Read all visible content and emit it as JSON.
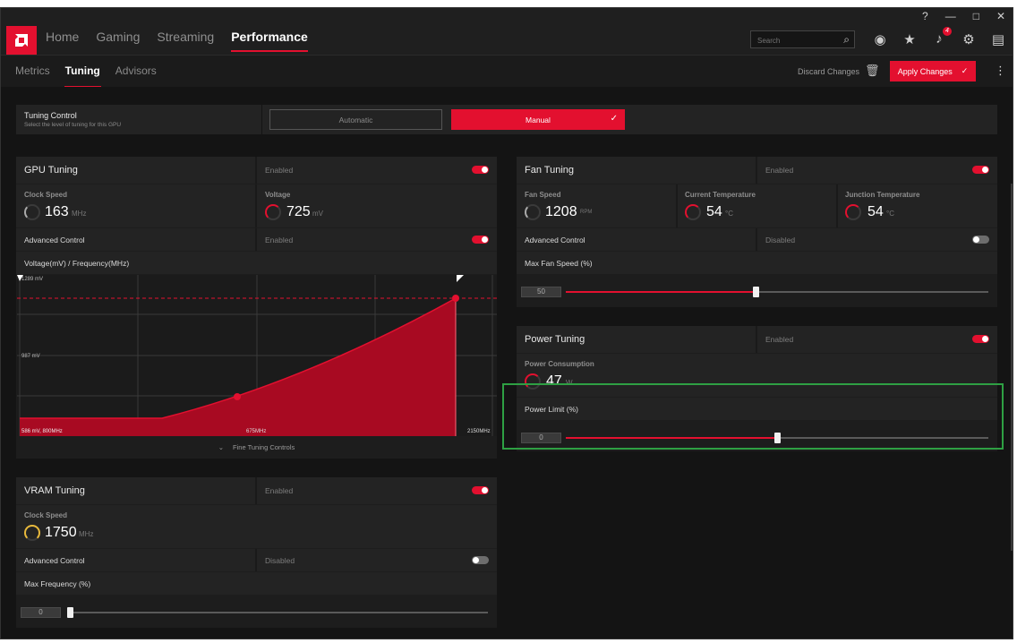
{
  "top_strip": {
    "text": "........................................................................................................................"
  },
  "titlebar": {
    "logo": "a",
    "nav": [
      "Home",
      "Gaming",
      "Streaming",
      "Performance"
    ],
    "active_nav": "Performance",
    "window_controls": [
      "?",
      "—",
      "□",
      "✕"
    ],
    "search": {
      "placeholder": "Search"
    },
    "notification_count": "4"
  },
  "subnav": {
    "tabs": [
      "Metrics",
      "Tuning",
      "Advisors"
    ],
    "active_tab": "Tuning",
    "discard_label": "Discard Changes",
    "apply_label": "Apply Changes"
  },
  "tuning_control": {
    "title": "Tuning Control",
    "subtitle": "Select the level of tuning for this GPU",
    "options": [
      "Automatic",
      "Manual"
    ],
    "selected": "Manual"
  },
  "gpu_tuning": {
    "title": "GPU Tuning",
    "status": "Enabled",
    "clock_speed": {
      "label": "Clock Speed",
      "value": "163",
      "unit": "MHz"
    },
    "voltage": {
      "label": "Voltage",
      "value": "725",
      "unit": "mV"
    },
    "advanced_control": {
      "label": "Advanced Control",
      "status": "Enabled"
    },
    "vf_label": "Voltage(mV) / Frequency(MHz)",
    "chart_labels": {
      "top": "1289 mV",
      "mid": "987 mV",
      "bottom_left": "586 mV, 800MHz",
      "bottom_mid": "675MHz",
      "bottom_right": "2150MHz"
    },
    "fine_tuning": "Fine Tuning Controls"
  },
  "vram_tuning": {
    "title": "VRAM Tuning",
    "status": "Enabled",
    "clock_speed": {
      "label": "Clock Speed",
      "value": "1750",
      "unit": "MHz"
    },
    "advanced_control": {
      "label": "Advanced Control",
      "status": "Disabled"
    },
    "max_freq_label": "Max Frequency (%)",
    "max_freq_value": "0",
    "max_freq_fraction": 0.0
  },
  "fan_tuning": {
    "title": "Fan Tuning",
    "status": "Enabled",
    "fan_speed": {
      "label": "Fan Speed",
      "value": "1208",
      "unit": "RPM"
    },
    "current_temp": {
      "label": "Current Temperature",
      "value": "54",
      "unit": "°C"
    },
    "junction_temp": {
      "label": "Junction Temperature",
      "value": "54",
      "unit": "°C"
    },
    "advanced_control": {
      "label": "Advanced Control",
      "status": "Disabled"
    },
    "max_fan_label": "Max Fan Speed (%)",
    "max_fan_value": "50",
    "max_fan_fraction": 0.45
  },
  "power_tuning": {
    "title": "Power Tuning",
    "status": "Enabled",
    "consumption": {
      "label": "Power Consumption",
      "value": "47",
      "unit": "W"
    },
    "power_limit_label": "Power Limit (%)",
    "power_limit_value": "0",
    "power_limit_fraction": 0.5
  },
  "colors": {
    "accent": "#e3102f",
    "background": "#141414",
    "panel": "#1d1d1d",
    "highlight": "#2ea043"
  }
}
